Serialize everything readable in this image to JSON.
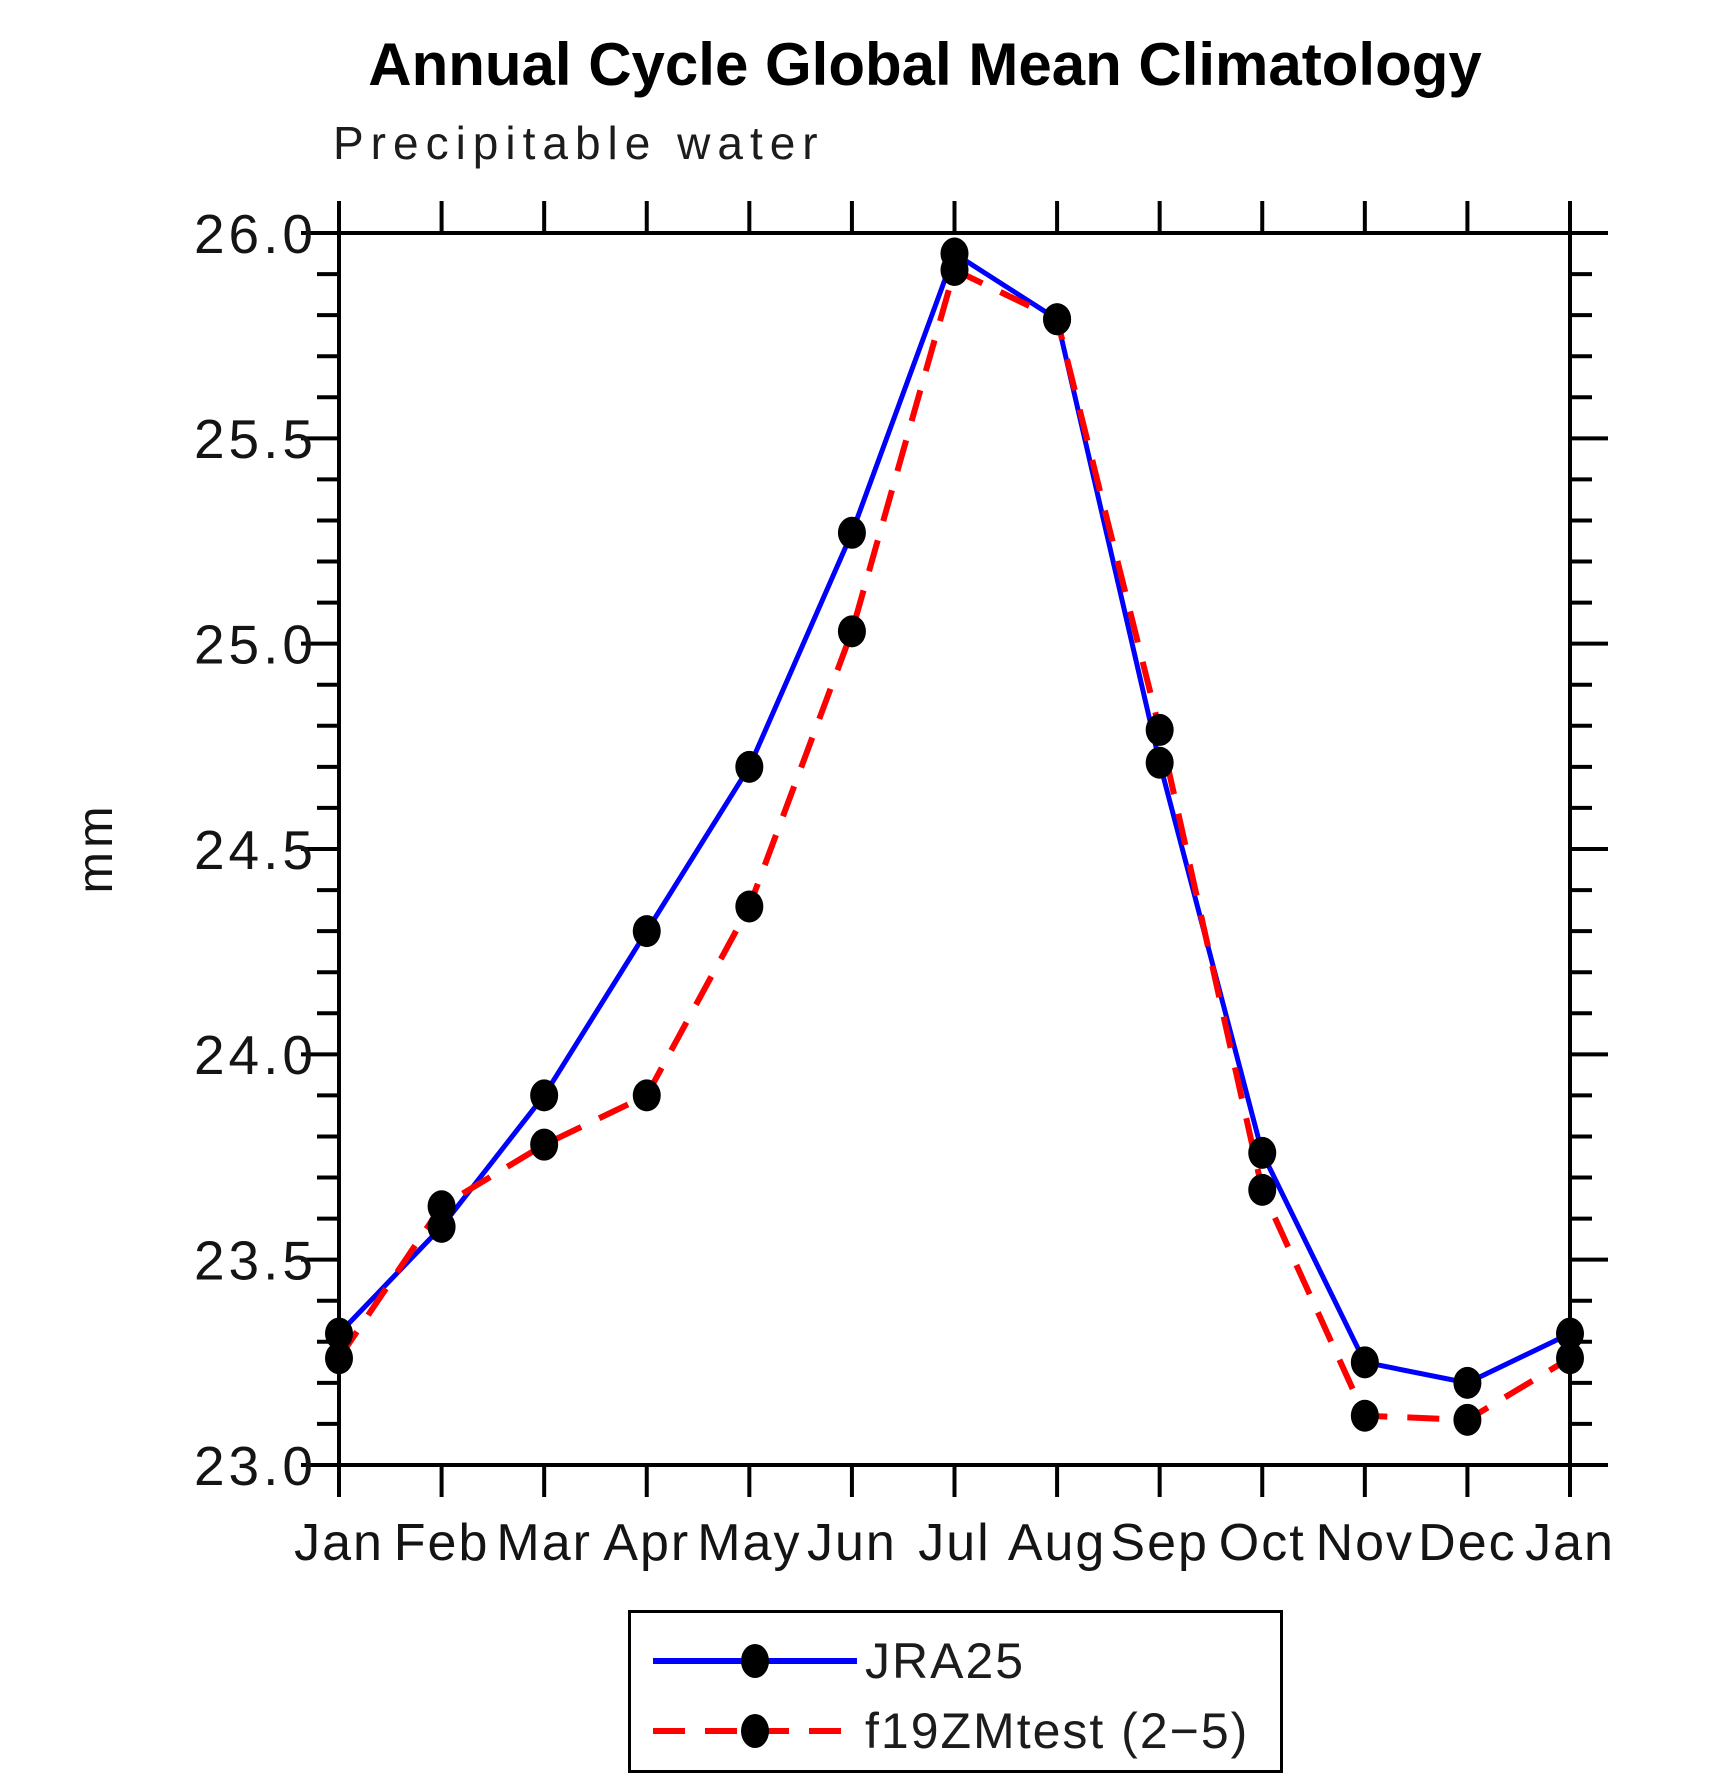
{
  "page": {
    "background": "#ffffff"
  },
  "chart_data": {
    "type": "line",
    "title": "Annual Cycle Global Mean Climatology",
    "subtitle": "Precipitable water",
    "ylabel": "mm",
    "xlabel": "",
    "x_tick_labels": [
      "Jan",
      "Feb",
      "Mar",
      "Apr",
      "May",
      "Jun",
      "Jul",
      "Aug",
      "Sep",
      "Oct",
      "Nov",
      "Dec",
      "Jan"
    ],
    "ylim": [
      23.0,
      26.0
    ],
    "y_major_ticks": [
      23.0,
      23.5,
      24.0,
      24.5,
      25.0,
      25.5,
      26.0
    ],
    "y_minor_step": 0.1,
    "grid": false,
    "legend_position": "bottom-center",
    "axis_color": "#000000",
    "series": [
      {
        "name": "JRA25",
        "color": "#0000ff",
        "line_style": "solid",
        "marker": "filled-circle",
        "marker_color": "#000000",
        "values": [
          23.32,
          23.58,
          23.9,
          24.3,
          24.7,
          25.27,
          25.95,
          25.79,
          24.71,
          23.76,
          23.25,
          23.2,
          23.32
        ]
      },
      {
        "name": "f19ZMtest (2−5)",
        "color": "#ff0000",
        "line_style": "dashed",
        "marker": "filled-circle",
        "marker_color": "#000000",
        "values": [
          23.26,
          23.63,
          23.78,
          23.9,
          24.36,
          25.03,
          25.91,
          25.79,
          24.79,
          23.67,
          23.12,
          23.11,
          23.26
        ]
      }
    ]
  }
}
